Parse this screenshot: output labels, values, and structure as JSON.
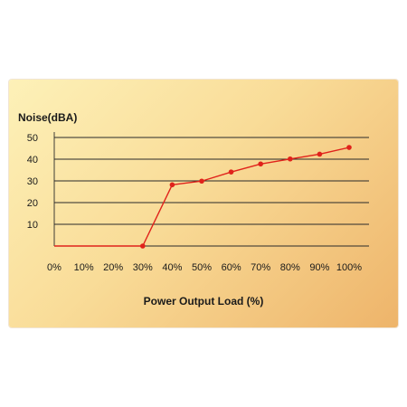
{
  "chart_data": {
    "type": "line",
    "title": "",
    "xlabel": "Power Output Load (%)",
    "ylabel": "Noise(dBA)",
    "x": [
      "0%",
      "10%",
      "20%",
      "30%",
      "40%",
      "50%",
      "60%",
      "70%",
      "80%",
      "90%",
      "100%"
    ],
    "y_ticks": [
      10,
      20,
      30,
      40,
      50
    ],
    "ylim": [
      0,
      50
    ],
    "grid": "horizontal",
    "legend": "none",
    "colors": {
      "line": "#e0221b",
      "marker": "#e0221b",
      "grid": "#2a2a2a",
      "text": "#1a1a1a"
    },
    "series": [
      {
        "values": [
          0,
          0,
          0,
          0,
          28.2,
          29.9,
          34.1,
          37.8,
          40.1,
          42.3,
          45.4
        ],
        "points_shown": [
          false,
          false,
          false,
          true,
          true,
          true,
          true,
          true,
          true,
          true,
          true
        ]
      }
    ]
  }
}
